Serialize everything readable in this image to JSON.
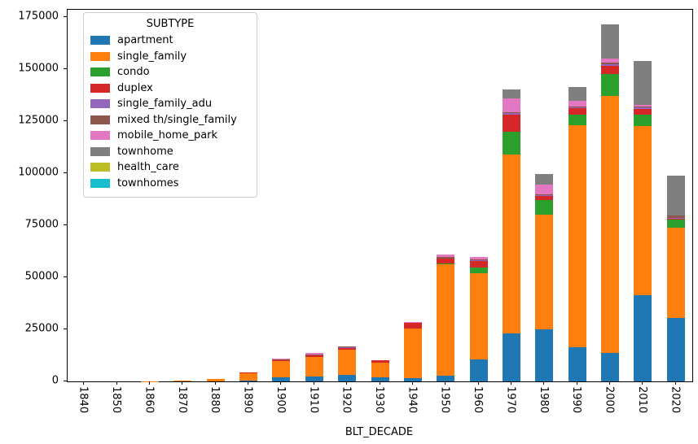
{
  "chart_data": {
    "type": "bar",
    "stacked": true,
    "title": "",
    "xlabel": "BLT_DECADE",
    "ylabel": "",
    "ylim": [
      0,
      178500
    ],
    "yticks": [
      0,
      25000,
      50000,
      75000,
      100000,
      125000,
      150000,
      175000
    ],
    "grid": false,
    "legend_position": "upper-left-inside",
    "legend_title": "SUBTYPE",
    "categories": [
      "1840",
      "1850",
      "1860",
      "1870",
      "1880",
      "1890",
      "1900",
      "1910",
      "1920",
      "1930",
      "1940",
      "1950",
      "1960",
      "1970",
      "1980",
      "1990",
      "2000",
      "2010",
      "2020"
    ],
    "series": [
      {
        "name": "apartment",
        "color": "#1f77b4",
        "values": [
          0,
          0,
          0,
          0,
          0,
          300,
          2000,
          2500,
          3000,
          1900,
          1500,
          2800,
          10500,
          23000,
          25000,
          16500,
          13800,
          41500,
          30500
        ]
      },
      {
        "name": "single_family",
        "color": "#ff7f0e",
        "values": [
          0,
          0,
          100,
          400,
          1000,
          3800,
          7600,
          9400,
          12200,
          7100,
          24000,
          53500,
          41500,
          86000,
          55000,
          106400,
          123400,
          81000,
          43500
        ]
      },
      {
        "name": "condo",
        "color": "#2ca02c",
        "values": [
          0,
          0,
          0,
          0,
          0,
          0,
          0,
          0,
          0,
          0,
          0,
          400,
          2600,
          11000,
          7200,
          5200,
          10400,
          5500,
          3900
        ]
      },
      {
        "name": "duplex",
        "color": "#d62728",
        "values": [
          0,
          0,
          0,
          0,
          0,
          400,
          400,
          500,
          1000,
          1000,
          2700,
          2200,
          3300,
          8200,
          2000,
          3300,
          4000,
          2900,
          300
        ]
      },
      {
        "name": "single_family_adu",
        "color": "#9467bd",
        "values": [
          0,
          0,
          0,
          0,
          0,
          0,
          0,
          200,
          200,
          0,
          0,
          0,
          300,
          900,
          300,
          400,
          800,
          800,
          200
        ]
      },
      {
        "name": "mixed th/single_family",
        "color": "#8c564b",
        "values": [
          0,
          0,
          0,
          0,
          0,
          0,
          400,
          400,
          300,
          0,
          0,
          800,
          300,
          400,
          300,
          400,
          800,
          500,
          1400
        ]
      },
      {
        "name": "mobile_home_park",
        "color": "#e377c2",
        "values": [
          0,
          0,
          0,
          0,
          0,
          0,
          600,
          700,
          300,
          300,
          300,
          1300,
          1300,
          6500,
          4600,
          2600,
          1900,
          700,
          0
        ]
      },
      {
        "name": "townhome",
        "color": "#7f7f7f",
        "values": [
          0,
          0,
          0,
          0,
          0,
          0,
          0,
          0,
          0,
          0,
          0,
          0,
          0,
          4300,
          5200,
          6800,
          16300,
          21200,
          19100
        ]
      },
      {
        "name": "health_care",
        "color": "#bcbd22",
        "values": [
          0,
          0,
          0,
          0,
          0,
          0,
          0,
          0,
          0,
          0,
          0,
          0,
          0,
          0,
          0,
          0,
          0,
          0,
          0
        ]
      },
      {
        "name": "townhomes",
        "color": "#17becf",
        "values": [
          0,
          0,
          0,
          0,
          0,
          0,
          0,
          0,
          0,
          0,
          0,
          0,
          0,
          0,
          0,
          0,
          0,
          0,
          0
        ]
      }
    ]
  }
}
